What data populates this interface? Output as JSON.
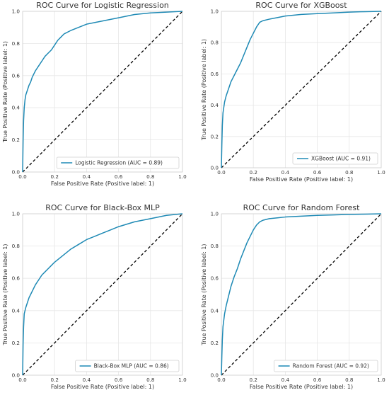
{
  "chart_data": [
    {
      "type": "line",
      "title": "ROC Curve for Logistic Regression",
      "xlabel": "False Positive Rate (Positive label: 1)",
      "ylabel": "True Positive Rate (Positive label: 1)",
      "xlim": [
        0,
        1
      ],
      "ylim": [
        0,
        1
      ],
      "xticks": [
        "0.0",
        "0.2",
        "0.4",
        "0.6",
        "0.8",
        "1.0"
      ],
      "yticks": [
        "0.0",
        "0.2",
        "0.4",
        "0.6",
        "0.8",
        "1.0"
      ],
      "grid": true,
      "legend_position": "lower-right",
      "series": [
        {
          "name": "Logistic Regression (AUC = 0.89)",
          "color": "#1f8ab5",
          "x": [
            0,
            0.003,
            0.006,
            0.01,
            0.015,
            0.02,
            0.03,
            0.04,
            0.05,
            0.06,
            0.08,
            0.1,
            0.12,
            0.14,
            0.16,
            0.18,
            0.2,
            0.22,
            0.24,
            0.26,
            0.3,
            0.35,
            0.4,
            0.45,
            0.5,
            0.6,
            0.7,
            0.8,
            0.9,
            1.0
          ],
          "y": [
            0,
            0.2,
            0.32,
            0.4,
            0.45,
            0.48,
            0.51,
            0.54,
            0.56,
            0.59,
            0.63,
            0.66,
            0.69,
            0.72,
            0.74,
            0.76,
            0.79,
            0.82,
            0.84,
            0.86,
            0.88,
            0.9,
            0.92,
            0.93,
            0.94,
            0.96,
            0.98,
            0.99,
            0.995,
            1.0
          ]
        }
      ]
    },
    {
      "type": "line",
      "title": "ROC Curve for XGBoost",
      "xlabel": "False Positive Rate (Positive label: 1)",
      "ylabel": "True Positive Rate (Positive label: 1)",
      "xlim": [
        0,
        1
      ],
      "ylim": [
        0,
        1
      ],
      "xticks": [
        "0.0",
        "0.2",
        "0.4",
        "0.6",
        "0.8",
        "1.0"
      ],
      "yticks": [
        "0.0",
        "0.2",
        "0.4",
        "0.6",
        "0.8",
        "1.0"
      ],
      "grid": true,
      "legend_position": "lower-right",
      "series": [
        {
          "name": "XGBoost (AUC = 0.91)",
          "color": "#1f8ab5",
          "x": [
            0,
            0.003,
            0.006,
            0.01,
            0.02,
            0.03,
            0.04,
            0.05,
            0.06,
            0.08,
            0.1,
            0.12,
            0.14,
            0.16,
            0.18,
            0.2,
            0.22,
            0.24,
            0.26,
            0.3,
            0.35,
            0.4,
            0.5,
            0.6,
            0.7,
            0.8,
            0.9,
            1.0
          ],
          "y": [
            0,
            0.15,
            0.27,
            0.35,
            0.42,
            0.46,
            0.49,
            0.52,
            0.55,
            0.59,
            0.63,
            0.67,
            0.72,
            0.77,
            0.82,
            0.86,
            0.9,
            0.93,
            0.94,
            0.95,
            0.96,
            0.97,
            0.98,
            0.985,
            0.99,
            0.995,
            0.998,
            1.0
          ]
        }
      ]
    },
    {
      "type": "line",
      "title": "ROC Curve for Black-Box MLP",
      "xlabel": "False Positive Rate (Positive label: 1)",
      "ylabel": "True Positive Rate (Positive label: 1)",
      "xlim": [
        0,
        1
      ],
      "ylim": [
        0,
        1
      ],
      "xticks": [
        "0.0",
        "0.2",
        "0.4",
        "0.6",
        "0.8",
        "1.0"
      ],
      "yticks": [
        "0.0",
        "0.2",
        "0.4",
        "0.6",
        "0.8",
        "1.0"
      ],
      "grid": true,
      "legend_position": "lower-right",
      "series": [
        {
          "name": "Black-Box MLP (AUC = 0.86)",
          "color": "#1f8ab5",
          "x": [
            0,
            0.003,
            0.006,
            0.01,
            0.02,
            0.03,
            0.04,
            0.05,
            0.06,
            0.08,
            0.1,
            0.12,
            0.14,
            0.16,
            0.18,
            0.2,
            0.25,
            0.3,
            0.35,
            0.4,
            0.45,
            0.5,
            0.55,
            0.6,
            0.7,
            0.8,
            0.9,
            1.0
          ],
          "y": [
            0,
            0.2,
            0.3,
            0.38,
            0.42,
            0.45,
            0.48,
            0.5,
            0.52,
            0.56,
            0.59,
            0.62,
            0.64,
            0.66,
            0.68,
            0.7,
            0.74,
            0.78,
            0.81,
            0.84,
            0.86,
            0.88,
            0.9,
            0.92,
            0.95,
            0.97,
            0.99,
            1.0
          ]
        }
      ]
    },
    {
      "type": "line",
      "title": "ROC Curve for Random Forest",
      "xlabel": "False Positive Rate (Positive label: 1)",
      "ylabel": "True Positive Rate (Positive label: 1)",
      "xlim": [
        0,
        1
      ],
      "ylim": [
        0,
        1
      ],
      "xticks": [
        "0.0",
        "0.2",
        "0.4",
        "0.6",
        "0.8",
        "1.0"
      ],
      "yticks": [
        "0.0",
        "0.2",
        "0.4",
        "0.6",
        "0.8",
        "1.0"
      ],
      "grid": true,
      "legend_position": "lower-right",
      "series": [
        {
          "name": "Random Forest (AUC = 0.92)",
          "color": "#1f8ab5",
          "x": [
            0,
            0.003,
            0.006,
            0.01,
            0.02,
            0.03,
            0.04,
            0.05,
            0.06,
            0.08,
            0.1,
            0.12,
            0.14,
            0.16,
            0.18,
            0.2,
            0.22,
            0.24,
            0.26,
            0.3,
            0.35,
            0.4,
            0.5,
            0.6,
            0.7,
            0.8,
            0.9,
            1.0
          ],
          "y": [
            0,
            0.12,
            0.22,
            0.3,
            0.38,
            0.43,
            0.47,
            0.51,
            0.55,
            0.61,
            0.66,
            0.72,
            0.77,
            0.82,
            0.86,
            0.9,
            0.93,
            0.95,
            0.96,
            0.97,
            0.975,
            0.98,
            0.985,
            0.99,
            0.993,
            0.996,
            0.998,
            1.0
          ]
        }
      ]
    }
  ]
}
